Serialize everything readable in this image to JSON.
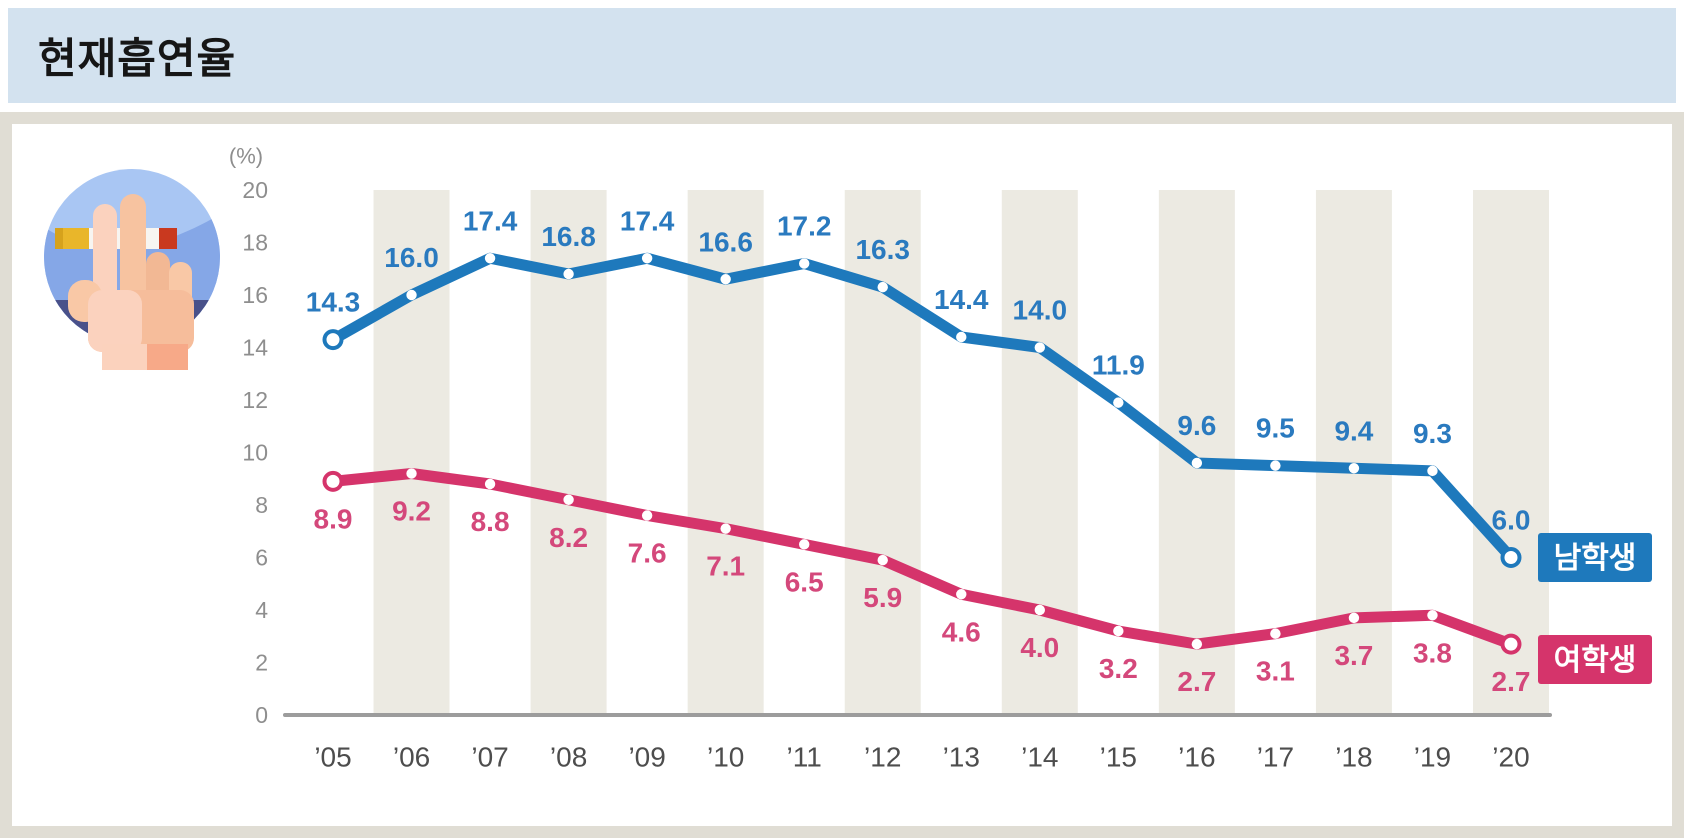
{
  "header": {
    "title": "현재흡연율",
    "bg_color": "#d3e2ef",
    "text_color": "#161616"
  },
  "card": {
    "bg_color": "#ffffff",
    "border_color": "#e0ddd4"
  },
  "icon": {
    "name": "smoking-hand-icon",
    "sky_light": "#a9c6f3",
    "sky_mid": "#85a7e7",
    "ground_navy": "#49518a",
    "skin": "#f9c8a6",
    "skin_light": "#fbd2be",
    "skin_mid": "#f7c3a0",
    "skin_shadow": "#f2b894",
    "palm": "#f6bd9b",
    "cuff_left": "#fbd2bd",
    "cuff_right": "#f7a988",
    "cig_filter": "#e9b62a",
    "cig_filter_cap": "#d6a21c",
    "cig_body": "#f7f5f1",
    "cig_tip": "#c9391f"
  },
  "chart_data": {
    "type": "line",
    "title": "현재흡연율",
    "unit_label": "(%)",
    "categories": [
      "’05",
      "’06",
      "’07",
      "’08",
      "’09",
      "’10",
      "’11",
      "’12",
      "’13",
      "’14",
      "’15",
      "’16",
      "’17",
      "’18",
      "’19",
      "’20"
    ],
    "series": [
      {
        "key": "male-students",
        "name": "남학생",
        "color": "#1e79bc",
        "label_color": "#2a7abf",
        "values": [
          14.3,
          16.0,
          17.4,
          16.8,
          17.4,
          16.6,
          17.2,
          16.3,
          14.4,
          14.0,
          11.9,
          9.6,
          9.5,
          9.4,
          9.3,
          6.0
        ]
      },
      {
        "key": "female-students",
        "name": "여학생",
        "color": "#d5346b",
        "label_color": "#d4487b",
        "values": [
          8.9,
          9.2,
          8.8,
          8.2,
          7.6,
          7.1,
          6.5,
          5.9,
          4.6,
          4.0,
          3.2,
          2.7,
          3.1,
          3.7,
          3.8,
          2.7
        ]
      }
    ],
    "ylim": [
      0,
      20
    ],
    "ytick_step": 2,
    "grid": "alternating-vertical-bands-on-even-years",
    "band_color": "#eceae2",
    "axis_color": "#9c9c9c",
    "ytick_color": "#8e8e8e",
    "xtick_color": "#4d4d4d",
    "legend_position": "right-of-line-ends",
    "legend_text_color": "#ffffff"
  }
}
